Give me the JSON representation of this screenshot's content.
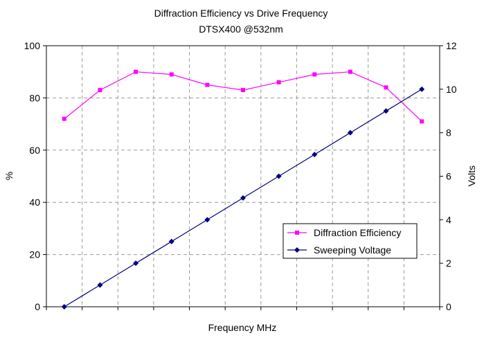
{
  "chart_data": {
    "type": "line",
    "title": "Diffraction Efficiency vs Drive Frequency",
    "subtitle": "DTSX400 @532nm",
    "xlabel": "Frequency MHz",
    "ylabel_left": "%",
    "ylabel_right": "Volts",
    "ylim_left": [
      0,
      100
    ],
    "ylim_right": [
      0,
      12
    ],
    "yticks_left": [
      "0",
      "20",
      "40",
      "60",
      "80",
      "100"
    ],
    "yticks_right": [
      "0",
      "2",
      "4",
      "6",
      "8",
      "10",
      "12"
    ],
    "x_points": 11,
    "grid": true,
    "legend_position": "lower-right",
    "series": [
      {
        "name": "Diffraction Efficiency",
        "axis": "left",
        "color": "#ff00ff",
        "marker": "square",
        "values": [
          72,
          83,
          90,
          89,
          85,
          83,
          86,
          89,
          90,
          84,
          71
        ]
      },
      {
        "name": "Sweeping Voltage",
        "axis": "right",
        "color": "#000080",
        "marker": "diamond",
        "values": [
          0,
          1,
          2,
          3,
          4,
          5,
          6,
          7,
          8,
          9,
          10
        ]
      }
    ]
  }
}
